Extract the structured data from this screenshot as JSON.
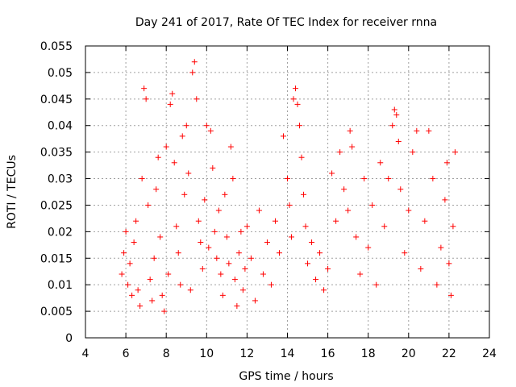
{
  "chart_data": {
    "type": "scatter",
    "title": "Day 241 of 2017, Rate Of TEC Index for receiver rnna",
    "xlabel": "GPS time / hours",
    "ylabel": "ROTI / TECUs",
    "xlim": [
      4,
      24
    ],
    "ylim": [
      0,
      0.055
    ],
    "xticks": [
      "4",
      "6",
      "8",
      "10",
      "12",
      "14",
      "16",
      "18",
      "20",
      "22",
      "24"
    ],
    "yticks": [
      "0",
      "0.005",
      "0.01",
      "0.015",
      "0.02",
      "0.025",
      "0.03",
      "0.035",
      "0.04",
      "0.045",
      "0.05",
      "0.055"
    ],
    "grid": true,
    "marker": "+",
    "color": "#ff0000",
    "series": [
      {
        "name": "ROTI",
        "points": [
          [
            5.8,
            0.012
          ],
          [
            5.9,
            0.016
          ],
          [
            6.0,
            0.02
          ],
          [
            6.1,
            0.01
          ],
          [
            6.2,
            0.014
          ],
          [
            6.3,
            0.008
          ],
          [
            6.4,
            0.018
          ],
          [
            6.5,
            0.022
          ],
          [
            6.6,
            0.009
          ],
          [
            6.7,
            0.006
          ],
          [
            6.8,
            0.03
          ],
          [
            6.9,
            0.047
          ],
          [
            7.0,
            0.045
          ],
          [
            7.1,
            0.025
          ],
          [
            7.2,
            0.011
          ],
          [
            7.3,
            0.007
          ],
          [
            7.4,
            0.015
          ],
          [
            7.5,
            0.028
          ],
          [
            7.6,
            0.034
          ],
          [
            7.7,
            0.019
          ],
          [
            7.8,
            0.008
          ],
          [
            7.9,
            0.005
          ],
          [
            8.0,
            0.036
          ],
          [
            8.1,
            0.012
          ],
          [
            8.2,
            0.044
          ],
          [
            8.3,
            0.046
          ],
          [
            8.4,
            0.033
          ],
          [
            8.5,
            0.021
          ],
          [
            8.6,
            0.016
          ],
          [
            8.7,
            0.01
          ],
          [
            8.8,
            0.038
          ],
          [
            8.9,
            0.027
          ],
          [
            9.0,
            0.04
          ],
          [
            9.1,
            0.031
          ],
          [
            9.2,
            0.009
          ],
          [
            9.3,
            0.05
          ],
          [
            9.4,
            0.052
          ],
          [
            9.5,
            0.045
          ],
          [
            9.6,
            0.022
          ],
          [
            9.7,
            0.018
          ],
          [
            9.8,
            0.013
          ],
          [
            9.9,
            0.026
          ],
          [
            10.0,
            0.04
          ],
          [
            10.1,
            0.017
          ],
          [
            10.2,
            0.039
          ],
          [
            10.3,
            0.032
          ],
          [
            10.4,
            0.02
          ],
          [
            10.5,
            0.015
          ],
          [
            10.6,
            0.024
          ],
          [
            10.7,
            0.012
          ],
          [
            10.8,
            0.008
          ],
          [
            10.9,
            0.027
          ],
          [
            11.0,
            0.019
          ],
          [
            11.1,
            0.014
          ],
          [
            11.2,
            0.036
          ],
          [
            11.3,
            0.03
          ],
          [
            11.4,
            0.011
          ],
          [
            11.5,
            0.006
          ],
          [
            11.6,
            0.016
          ],
          [
            11.7,
            0.02
          ],
          [
            11.8,
            0.009
          ],
          [
            11.9,
            0.013
          ],
          [
            12.0,
            0.021
          ],
          [
            12.2,
            0.015
          ],
          [
            12.4,
            0.007
          ],
          [
            12.6,
            0.024
          ],
          [
            12.8,
            0.012
          ],
          [
            13.0,
            0.018
          ],
          [
            13.2,
            0.01
          ],
          [
            13.4,
            0.022
          ],
          [
            13.6,
            0.016
          ],
          [
            13.8,
            0.038
          ],
          [
            14.0,
            0.03
          ],
          [
            14.1,
            0.025
          ],
          [
            14.2,
            0.019
          ],
          [
            14.3,
            0.045
          ],
          [
            14.4,
            0.047
          ],
          [
            14.5,
            0.044
          ],
          [
            14.6,
            0.04
          ],
          [
            14.7,
            0.034
          ],
          [
            14.8,
            0.027
          ],
          [
            14.9,
            0.021
          ],
          [
            15.0,
            0.014
          ],
          [
            15.2,
            0.018
          ],
          [
            15.4,
            0.011
          ],
          [
            15.6,
            0.016
          ],
          [
            15.8,
            0.009
          ],
          [
            16.0,
            0.013
          ],
          [
            16.2,
            0.031
          ],
          [
            16.4,
            0.022
          ],
          [
            16.6,
            0.035
          ],
          [
            16.8,
            0.028
          ],
          [
            17.0,
            0.024
          ],
          [
            17.1,
            0.039
          ],
          [
            17.2,
            0.036
          ],
          [
            17.4,
            0.019
          ],
          [
            17.6,
            0.012
          ],
          [
            17.8,
            0.03
          ],
          [
            18.0,
            0.017
          ],
          [
            18.2,
            0.025
          ],
          [
            18.4,
            0.01
          ],
          [
            18.6,
            0.033
          ],
          [
            18.8,
            0.021
          ],
          [
            19.0,
            0.03
          ],
          [
            19.2,
            0.04
          ],
          [
            19.3,
            0.043
          ],
          [
            19.4,
            0.042
          ],
          [
            19.5,
            0.037
          ],
          [
            19.6,
            0.028
          ],
          [
            19.8,
            0.016
          ],
          [
            20.0,
            0.024
          ],
          [
            20.2,
            0.035
          ],
          [
            20.4,
            0.039
          ],
          [
            20.6,
            0.013
          ],
          [
            20.8,
            0.022
          ],
          [
            21.0,
            0.039
          ],
          [
            21.2,
            0.03
          ],
          [
            21.4,
            0.01
          ],
          [
            21.6,
            0.017
          ],
          [
            21.8,
            0.026
          ],
          [
            21.9,
            0.033
          ],
          [
            22.0,
            0.014
          ],
          [
            22.1,
            0.008
          ],
          [
            22.2,
            0.021
          ],
          [
            22.3,
            0.035
          ]
        ]
      }
    ]
  }
}
